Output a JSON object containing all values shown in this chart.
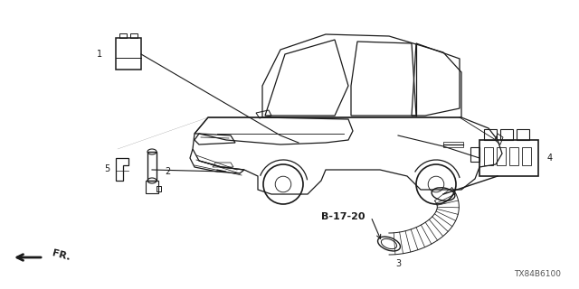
{
  "bg_color": "#ffffff",
  "car_color": "#1a1a1a",
  "diagram_code": "TX84B6100",
  "ref_code": "B-17-20",
  "figsize": [
    6.4,
    3.2
  ],
  "dpi": 100
}
